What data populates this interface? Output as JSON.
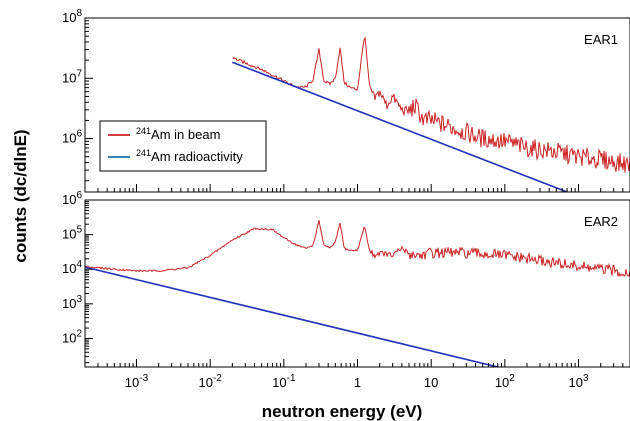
{
  "chart_data": {
    "type": "line",
    "ylabel": "counts (dc/dlnE)",
    "xlabel": "neutron energy (eV)",
    "x_scale": "log",
    "y_scale": "log",
    "xlim": [
      0.0002,
      5000
    ],
    "x_ticks": [
      {
        "base": "10",
        "exp": "-3",
        "value": 0.001
      },
      {
        "base": "10",
        "exp": "-2",
        "value": 0.01
      },
      {
        "base": "10",
        "exp": "-1",
        "value": 0.1
      },
      {
        "base": "1",
        "exp": "",
        "value": 1
      },
      {
        "base": "10",
        "exp": "",
        "value": 10
      },
      {
        "base": "10",
        "exp": "2",
        "value": 100
      },
      {
        "base": "10",
        "exp": "3",
        "value": 1000
      }
    ],
    "panels": [
      {
        "label": "EAR1",
        "ylim": [
          130000,
          100000000
        ],
        "y_ticks": [
          {
            "base": "10",
            "exp": "6",
            "value": 1000000
          },
          {
            "base": "10",
            "exp": "7",
            "value": 10000000
          },
          {
            "base": "10",
            "exp": "8",
            "value": 100000000
          }
        ],
        "legend": {
          "placement": "left",
          "entries": [
            {
              "sup": "241",
              "text": "Am in beam",
              "color": "#cc2222"
            },
            {
              "sup": "241",
              "text": "Am radioactivity",
              "color": "#1f6fb0"
            }
          ]
        },
        "series": [
          {
            "color": "#cc2222",
            "x": [
              0.02,
              0.03,
              0.05,
              0.08,
              0.12,
              0.16,
              0.2,
              0.25,
              0.3,
              0.35,
              0.42,
              0.5,
              0.58,
              0.66,
              0.8,
              1.0,
              1.25,
              1.45,
              1.7,
              2.0,
              2.5,
              3.0,
              4.0,
              5.0,
              6.0,
              8.0,
              10,
              20,
              50,
              100,
              200,
              500,
              1000,
              2000,
              5000
            ],
            "y": [
              22000000,
              18000000,
              14000000,
              10500000,
              8000000,
              7000000,
              7200000,
              9500000,
              30000000,
              9000000,
              8000000,
              10000000,
              32000000,
              8500000,
              7000000,
              6500000,
              55000000,
              7500000,
              4500000,
              6000000,
              3500000,
              5000000,
              3000000,
              2800000,
              3500000,
              2000000,
              2000000,
              1500000,
              1000000,
              900000,
              700000,
              600000,
              500000,
              450000,
              370000
            ]
          },
          {
            "color": "#2233bb",
            "x": [
              0.02,
              700
            ],
            "y": [
              18500000,
              130000
            ]
          }
        ]
      },
      {
        "label": "EAR2",
        "ylim": [
          15,
          1000000
        ],
        "y_ticks": [
          {
            "base": "10",
            "exp": "2",
            "value": 100
          },
          {
            "base": "10",
            "exp": "3",
            "value": 1000
          },
          {
            "base": "10",
            "exp": "4",
            "value": 10000
          },
          {
            "base": "10",
            "exp": "5",
            "value": 100000
          },
          {
            "base": "10",
            "exp": "6",
            "value": 1000000
          }
        ],
        "series": [
          {
            "color": "#cc2222",
            "x": [
              0.0002,
              0.0005,
              0.001,
              0.002,
              0.005,
              0.01,
              0.02,
              0.04,
              0.07,
              0.1,
              0.15,
              0.2,
              0.25,
              0.3,
              0.35,
              0.42,
              0.5,
              0.58,
              0.66,
              0.8,
              1.0,
              1.25,
              1.45,
              1.7,
              2.0,
              3.0,
              4.0,
              5.0,
              7.0,
              10,
              20,
              50,
              100,
              200,
              500,
              1000,
              2000,
              5000
            ],
            "y": [
              12000,
              10000,
              9000,
              9000,
              11000,
              25000,
              70000,
              150000,
              140000,
              80000,
              50000,
              40000,
              50000,
              250000,
              50000,
              40000,
              60000,
              220000,
              40000,
              35000,
              35000,
              180000,
              35000,
              25000,
              30000,
              25000,
              40000,
              28000,
              25000,
              30000,
              30000,
              28000,
              25000,
              20000,
              15000,
              12000,
              10000,
              8000
            ]
          },
          {
            "color": "#2233bb",
            "x": [
              0.0002,
              80
            ],
            "y": [
              11500,
              15
            ]
          }
        ]
      }
    ]
  }
}
